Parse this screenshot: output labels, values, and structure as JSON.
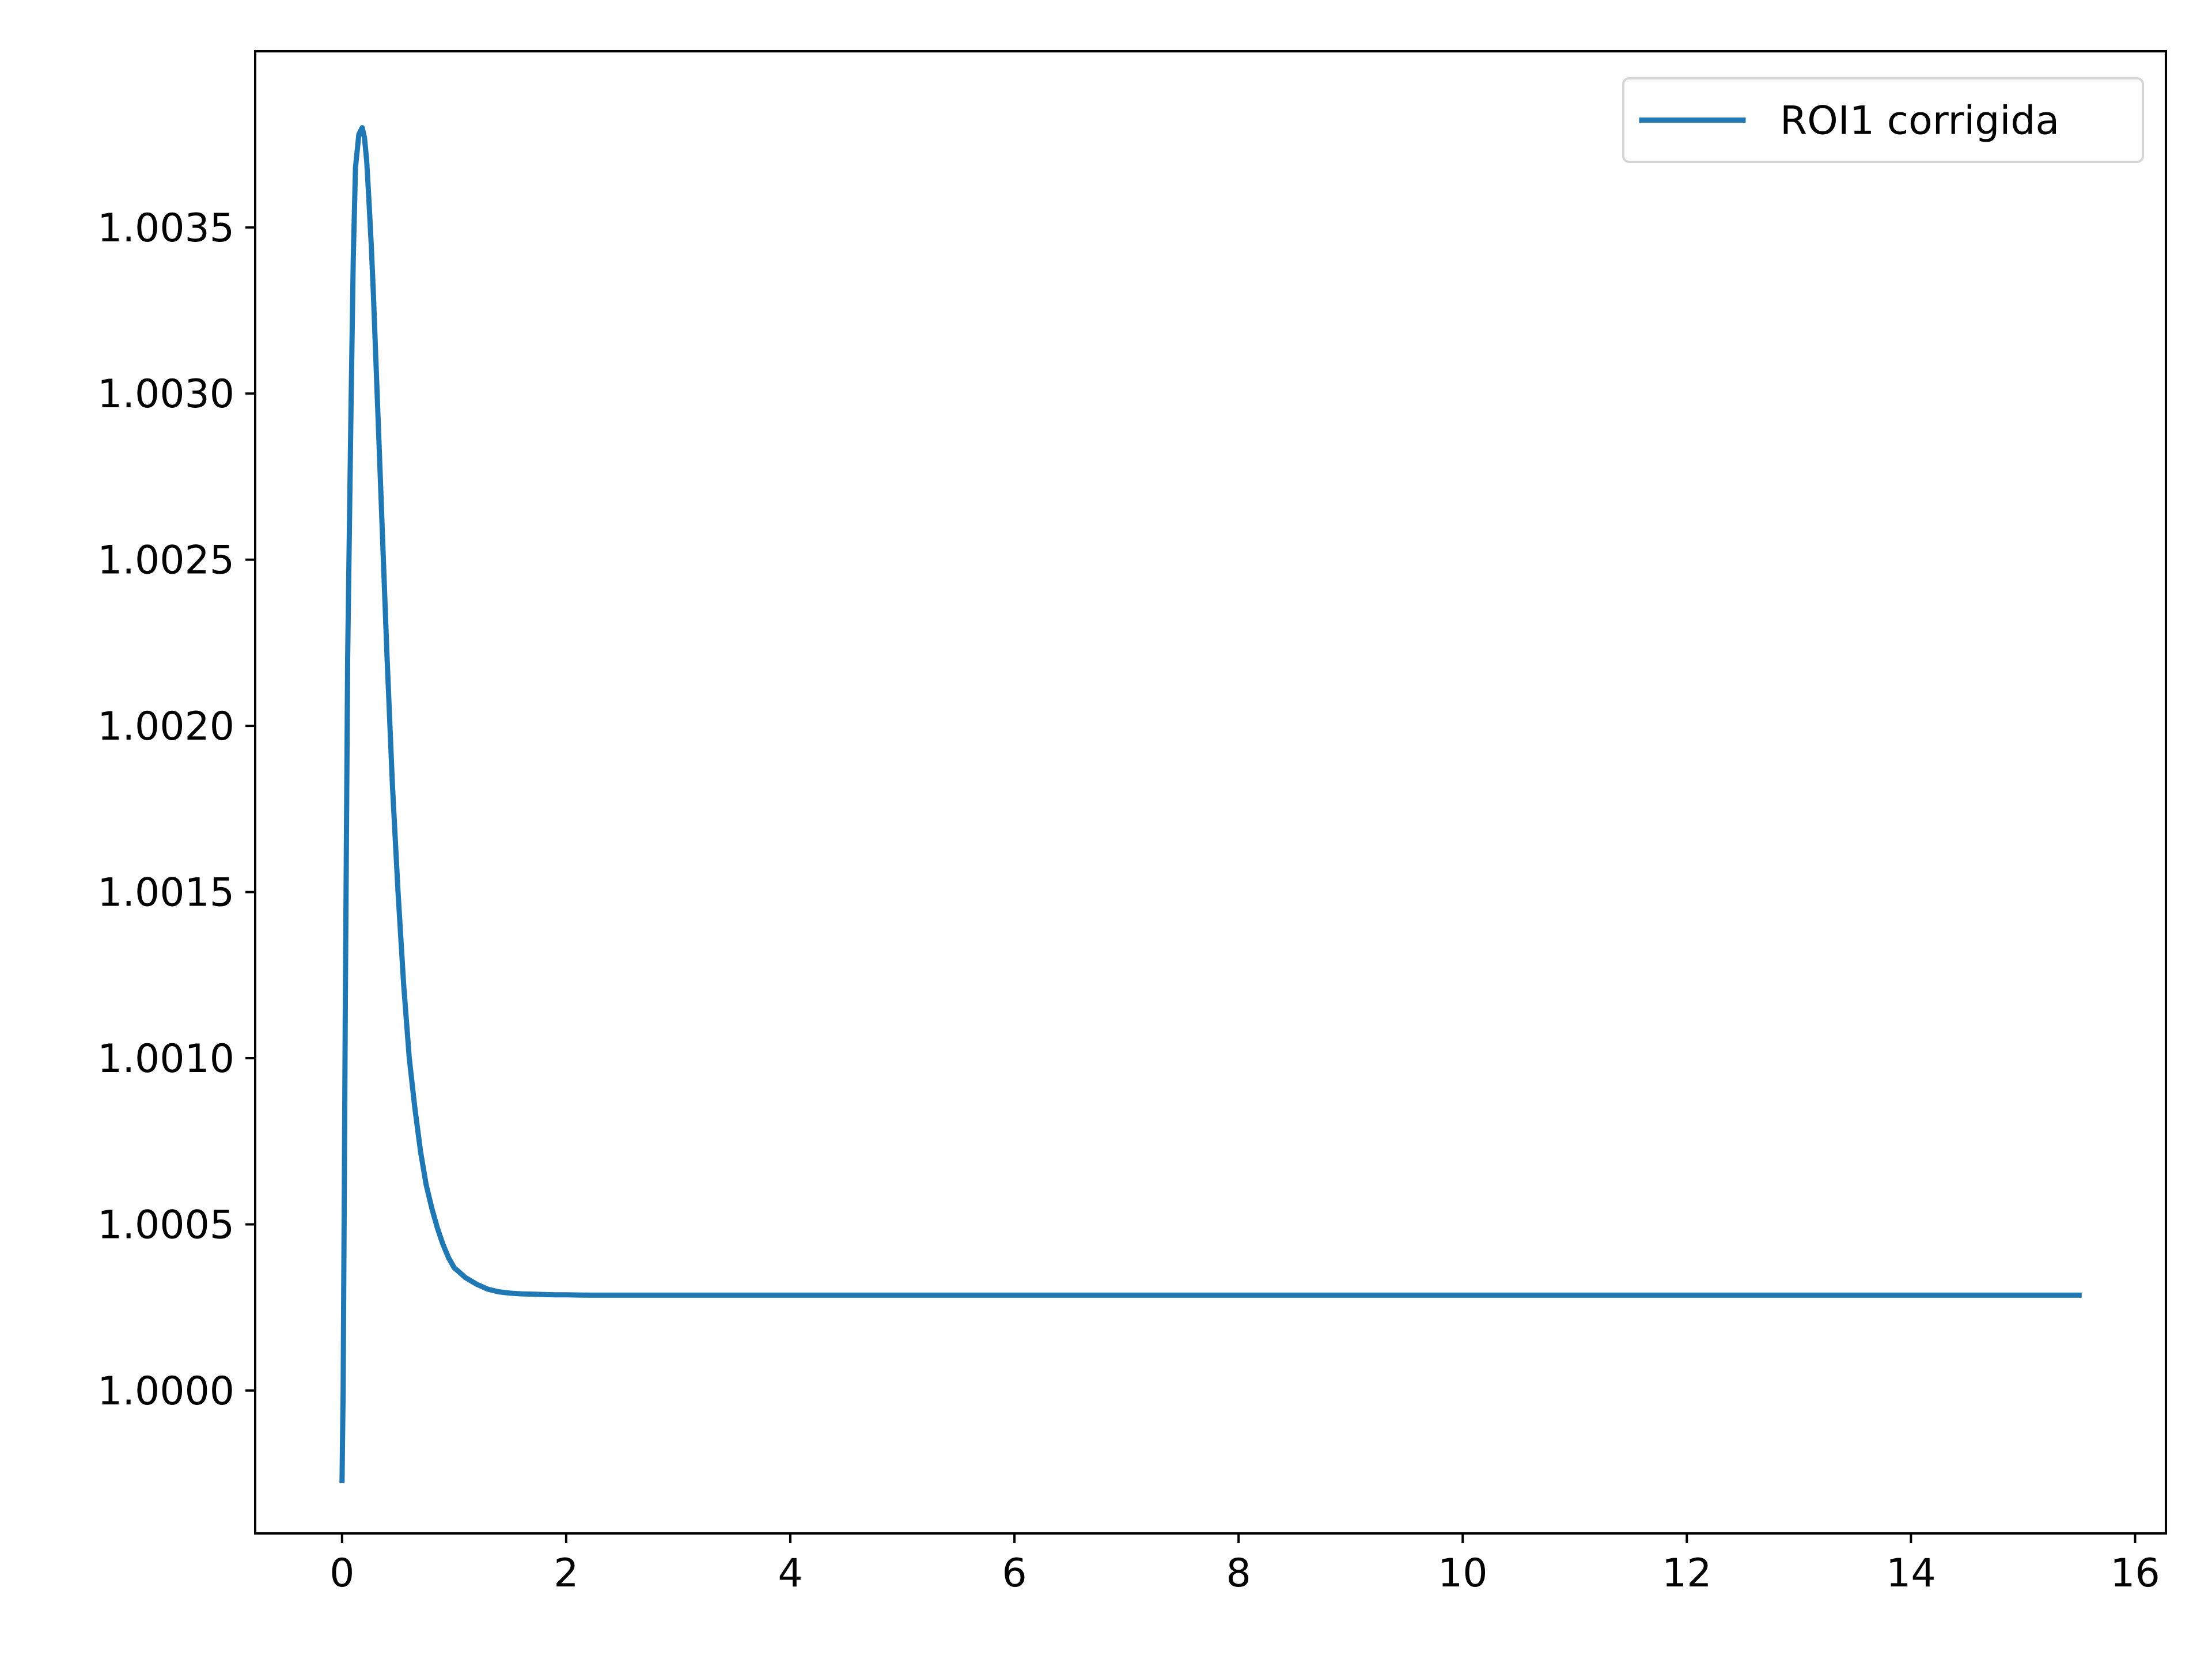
{
  "chart_data": {
    "type": "line",
    "title": "",
    "xlabel": "",
    "ylabel": "",
    "xlim": [
      -0.775,
      16.275
    ],
    "ylim": [
      0.99957,
      1.00403
    ],
    "xticks": [
      0,
      2,
      4,
      6,
      8,
      10,
      12,
      14,
      16
    ],
    "xtick_labels": [
      "0",
      "2",
      "4",
      "6",
      "8",
      "10",
      "12",
      "14",
      "16"
    ],
    "yticks": [
      1.0,
      1.0005,
      1.001,
      1.0015,
      1.002,
      1.0025,
      1.003,
      1.0035
    ],
    "ytick_labels": [
      "1.0000",
      "1.0005",
      "1.0010",
      "1.0015",
      "1.0020",
      "1.0025",
      "1.0030",
      "1.0035"
    ],
    "grid": false,
    "legend_position": "top-right",
    "series": [
      {
        "name": "ROI1 corrigida",
        "color": "#1f77b4",
        "x": [
          0.0,
          0.01,
          0.02,
          0.03,
          0.05,
          0.08,
          0.1,
          0.12,
          0.15,
          0.18,
          0.2,
          0.22,
          0.24,
          0.26,
          0.28,
          0.3,
          0.33,
          0.36,
          0.4,
          0.45,
          0.5,
          0.55,
          0.6,
          0.65,
          0.7,
          0.75,
          0.8,
          0.85,
          0.9,
          0.95,
          1.0,
          1.1,
          1.2,
          1.3,
          1.4,
          1.5,
          1.6,
          1.7,
          1.8,
          1.9,
          2.0,
          2.2,
          2.4,
          2.7,
          3.0,
          4.0,
          6.0,
          8.0,
          10.0,
          12.0,
          14.0,
          15.5
        ],
        "y": [
          0.99973,
          1.0,
          1.0006,
          1.0012,
          1.0022,
          1.00295,
          1.0034,
          1.00368,
          1.00378,
          1.0038,
          1.00377,
          1.0037,
          1.00358,
          1.00345,
          1.0033,
          1.00312,
          1.00285,
          1.00258,
          1.00222,
          1.00182,
          1.0015,
          1.00122,
          1.001,
          1.00085,
          1.00072,
          1.00062,
          1.00055,
          1.00049,
          1.00044,
          1.0004,
          1.00037,
          1.00034,
          1.00032,
          1.000305,
          1.000297,
          1.000293,
          1.000291,
          1.00029,
          1.000289,
          1.000288,
          1.000288,
          1.000287,
          1.000287,
          1.000287,
          1.000287,
          1.000287,
          1.000287,
          1.000287,
          1.000287,
          1.000287,
          1.000287,
          1.000287
        ]
      }
    ]
  }
}
